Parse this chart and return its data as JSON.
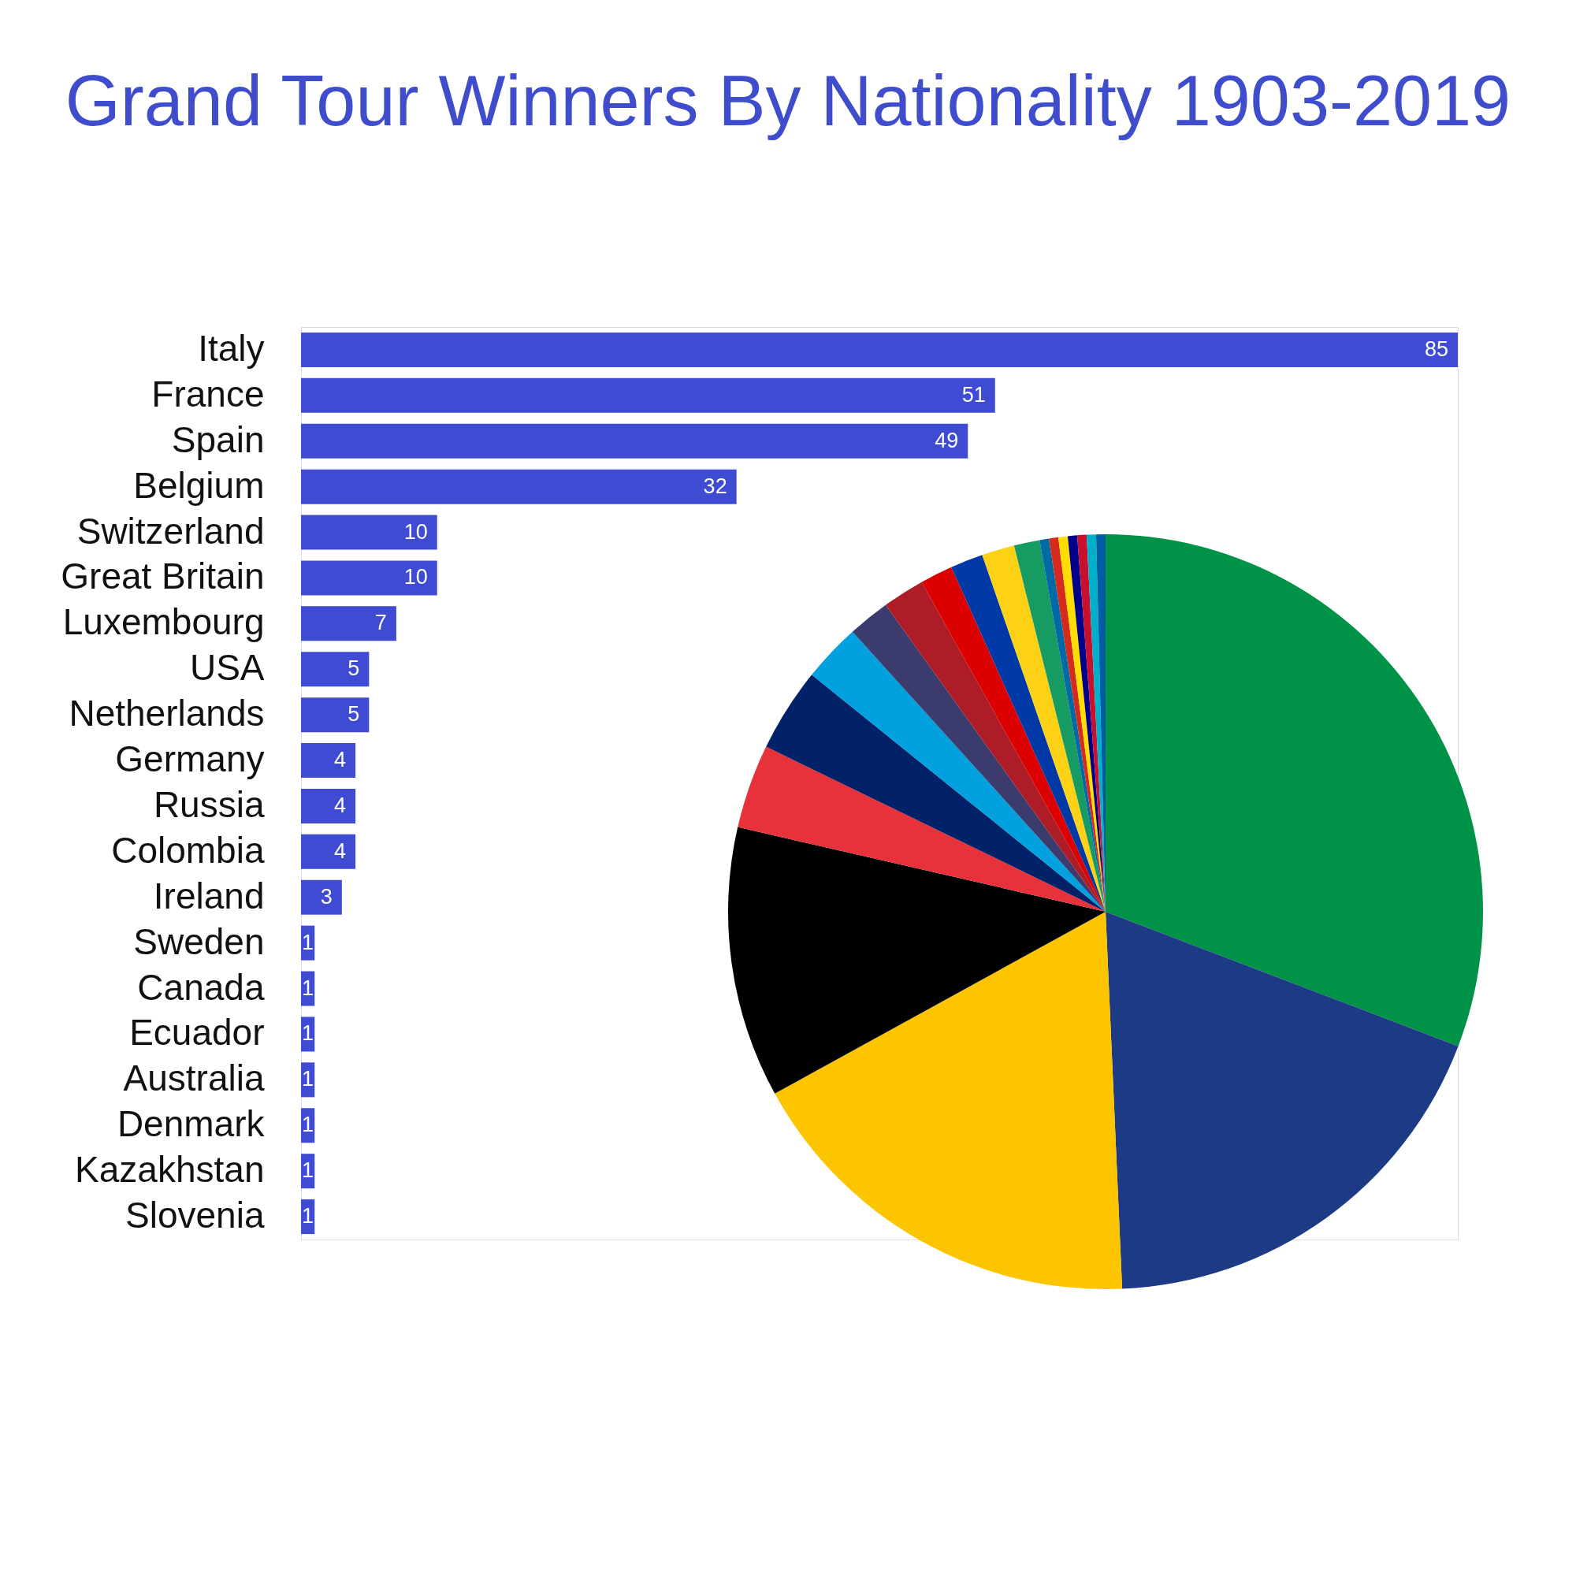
{
  "chart_data": [
    {
      "type": "bar",
      "orientation": "horizontal",
      "title": "Grand Tour Winners By Nationality 1903-2019",
      "categories": [
        "Italy",
        "France",
        "Spain",
        "Belgium",
        "Switzerland",
        "Great Britain",
        "Luxembourg",
        "USA",
        "Netherlands",
        "Germany",
        "Russia",
        "Colombia",
        "Ireland",
        "Sweden",
        "Canada",
        "Ecuador",
        "Australia",
        "Denmark",
        "Kazakhstan",
        "Slovenia"
      ],
      "values": [
        85,
        51,
        49,
        32,
        10,
        10,
        7,
        5,
        5,
        4,
        4,
        4,
        3,
        1,
        1,
        1,
        1,
        1,
        1,
        1
      ],
      "color": "#3e4bd2",
      "data_labels": true,
      "tick_labels": "y"
    },
    {
      "type": "pie",
      "categories": [
        null,
        null,
        null,
        null,
        null,
        null,
        null,
        null,
        null,
        null,
        null,
        null,
        null,
        null,
        null,
        null,
        null,
        null,
        null,
        null
      ],
      "values": [
        30.8,
        18.5,
        17.7,
        11.6,
        3.6,
        3.6,
        2.5,
        1.8,
        1.8,
        1.4,
        1.4,
        1.4,
        1.1,
        0.4,
        0.4,
        0.4,
        0.4,
        0.4,
        0.4,
        0.4
      ],
      "colors": [
        "#009246",
        "#1d3b84",
        "#fdc400",
        "#000000",
        "#e8323b",
        "#012169",
        "#00a1de",
        "#3c3b6e",
        "#ae1c28",
        "#dd0000",
        "#0039a6",
        "#fcd116",
        "#169b62",
        "#006aa7",
        "#d52b1e",
        "#ffdd00",
        "#00008b",
        "#c8102e",
        "#00afca",
        "#005da4"
      ]
    }
  ]
}
